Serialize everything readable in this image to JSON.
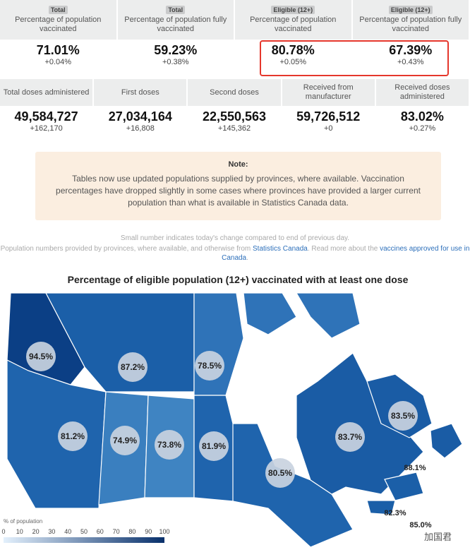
{
  "top_stats": [
    {
      "tag": "Total",
      "label": "Percentage of population vaccinated",
      "value": "71.01%",
      "change": "+0.04%"
    },
    {
      "tag": "Total",
      "label": "Percentage of population fully vaccinated",
      "value": "59.23%",
      "change": "+0.38%"
    },
    {
      "tag": "Eligible (12+)",
      "label": "Percentage of population vaccinated",
      "value": "80.78%",
      "change": "+0.05%"
    },
    {
      "tag": "Eligible (12+)",
      "label": "Percentage of population fully vaccinated",
      "value": "67.39%",
      "change": "+0.43%"
    }
  ],
  "dose_stats": [
    {
      "label": "Total doses administered",
      "value": "49,584,727",
      "change": "+162,170"
    },
    {
      "label": "First doses",
      "value": "27,034,164",
      "change": "+16,808"
    },
    {
      "label": "Second doses",
      "value": "22,550,563",
      "change": "+145,362"
    },
    {
      "label": "Received from manufacturer",
      "value": "59,726,512",
      "change": "+0"
    },
    {
      "label": "Received doses administered",
      "value": "83.02%",
      "change": "+0.27%"
    }
  ],
  "note": {
    "title": "Note:",
    "text": "Tables now use updated populations supplied by provinces, where available. Vaccination percentages have dropped slightly in some cases where provinces have provided a larger current population than what is available in Statistics Canada data."
  },
  "footnote": {
    "line1": "Small number indicates today's change compared to end of previous day.",
    "prefix": "Population numbers provided by provinces, where available, and otherwise from ",
    "link1": "Statistics Canada",
    "middle": ". Read more about the ",
    "link2": "vaccines approved for use in Canada",
    "suffix": "."
  },
  "map": {
    "title": "Percentage of eligible population (12+) vaccinated with at least one dose",
    "region_labels": [
      "94.5%",
      "87.2%",
      "78.5%",
      "81.2%",
      "74.9%",
      "73.8%",
      "81.9%",
      "80.5%",
      "83.7%",
      "83.5%",
      "88.1%",
      "82.3%",
      "85.0%"
    ],
    "legend_title": "% of population",
    "legend_ticks": [
      "0",
      "10",
      "20",
      "30",
      "40",
      "50",
      "60",
      "70",
      "80",
      "90",
      "100"
    ]
  },
  "watermark": "加国君"
}
